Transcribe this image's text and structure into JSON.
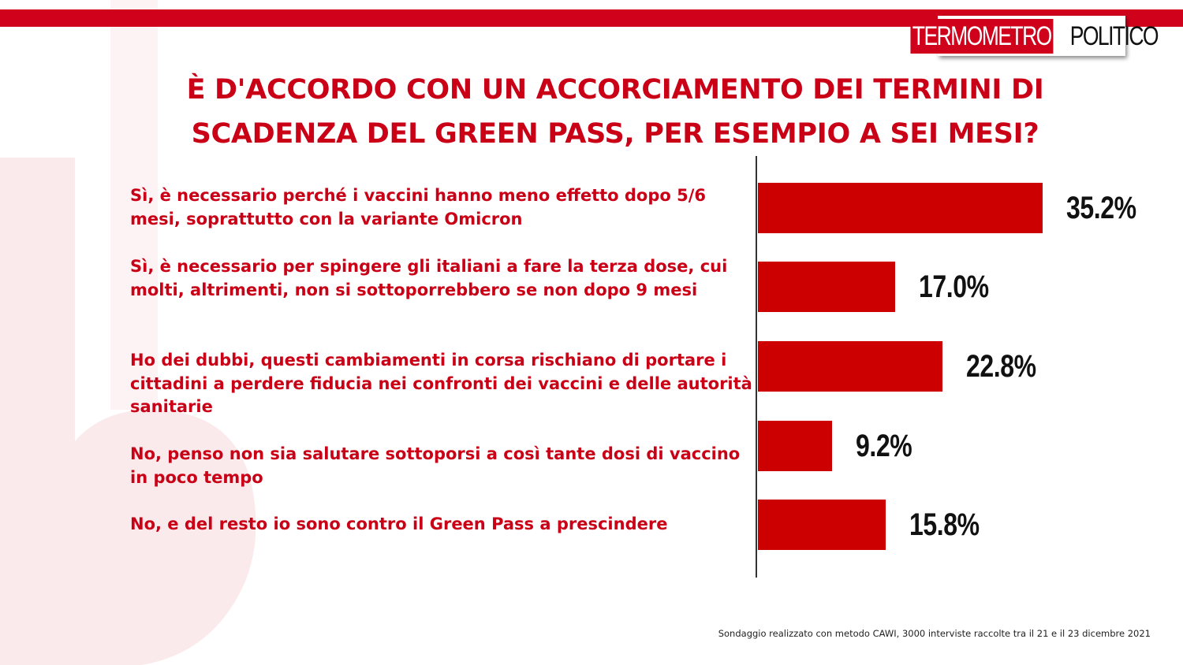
{
  "header": {
    "logo_part1": "TERMOMETRO",
    "logo_part2": "POLITICO"
  },
  "colors": {
    "accent": "#d0021b",
    "bar": "#cc0000",
    "text_red": "#c90016"
  },
  "chart_data": {
    "type": "bar",
    "orientation": "horizontal",
    "title": "È D'ACCORDO CON UN ACCORCIAMENTO DEI TERMINI DI SCADENZA DEL GREEN PASS, PER ESEMPIO A SEI MESI?",
    "categories": [
      "Sì, è necessario perché i vaccini hanno meno effetto dopo 5/6 mesi, soprattutto con la variante Omicron",
      "Sì, è necessario per spingere gli italiani a fare la terza dose, cui molti, altrimenti, non si sottoporrebbero se non dopo 9 mesi",
      "Ho dei dubbi, questi cambiamenti in corsa rischiano di portare i cittadini a perdere fiducia nei confronti dei vaccini e delle autorità  sanitarie",
      "No, penso non sia salutare sottoporsi a così tante dosi  di vaccino in poco tempo",
      "No, e del resto io sono contro il Green Pass a prescindere"
    ],
    "values": [
      35.2,
      17.0,
      22.8,
      9.2,
      15.8
    ],
    "value_labels": [
      "35.2%",
      "17.0%",
      "22.8%",
      "9.2%",
      "15.8%"
    ],
    "xlim": [
      0,
      52
    ],
    "grid": false,
    "legend": "none"
  },
  "footer": {
    "note": "Sondaggio realizzato con metodo CAWI, 3000 interviste raccolte tra il 21 e il 23 dicembre 2021"
  }
}
